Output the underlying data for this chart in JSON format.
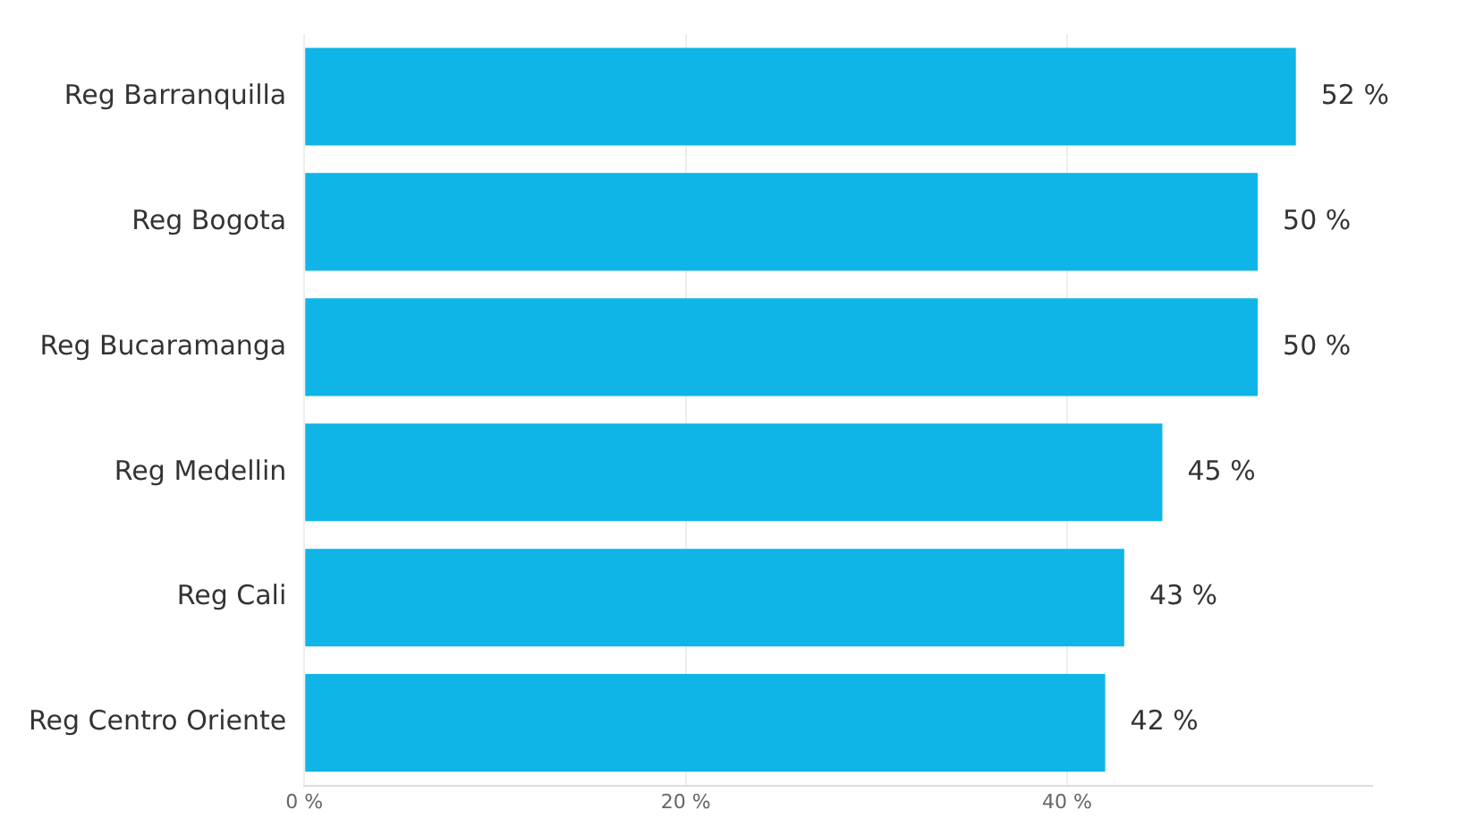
{
  "chart_data": {
    "type": "bar",
    "orientation": "horizontal",
    "categories": [
      "Reg Barranquilla",
      "Reg Bogota",
      "Reg Bucaramanga",
      "Reg Medellin",
      "Reg Cali",
      "Reg Centro Oriente"
    ],
    "values": [
      52,
      50,
      50,
      45,
      43,
      42
    ],
    "value_labels": [
      "52 %",
      "50 %",
      "50 %",
      "45 %",
      "43 %",
      "42 %"
    ],
    "color": "#0fb5e6",
    "xlim": [
      0,
      56
    ],
    "xticks": [
      {
        "value": 0,
        "label": "0 %"
      },
      {
        "value": 20,
        "label": "20 %"
      },
      {
        "value": 40,
        "label": "40 %"
      }
    ],
    "grid": "x",
    "legend": false
  }
}
